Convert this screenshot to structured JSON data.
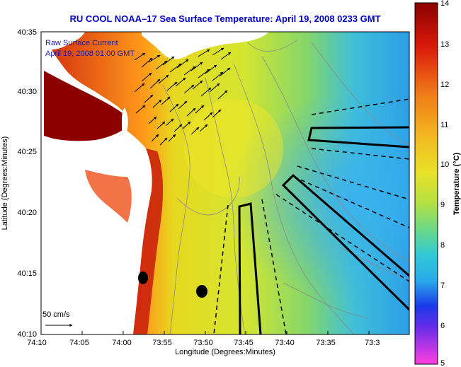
{
  "title": "RU COOL  NOAA–17  Sea Surface Temperature:  April 19, 2008 0233 GMT",
  "colors": {
    "title": "#0000c8",
    "legend_text": "#1a1aa0",
    "deep_red": "#8c0000",
    "land": "#ffffff",
    "contour": "#8a8a8a"
  },
  "legend": {
    "line1": "Raw Surface Current",
    "line2": "April 19, 2008 01:00 GMT"
  },
  "scale_label": "50 cm/s",
  "axes": {
    "xlabel": "Longitude (Degrees:Minutes)",
    "ylabel": "Latitude (Degrees:Minutes)",
    "xticks": [
      "74:10",
      "74:05",
      "74:00",
      "73:55",
      "73:50",
      "73:45",
      "73:40",
      "73:35",
      "73:3"
    ],
    "yticks": [
      "40:35",
      "40:30",
      "40:25",
      "40:20",
      "40:15",
      "40:10"
    ]
  },
  "colorbar": {
    "label": "Temperature (°C)",
    "ticks": [
      "14",
      "13",
      "12",
      "11",
      "10",
      "9",
      "8",
      "7",
      "6",
      "5"
    ],
    "min": 5,
    "max": 14
  }
}
